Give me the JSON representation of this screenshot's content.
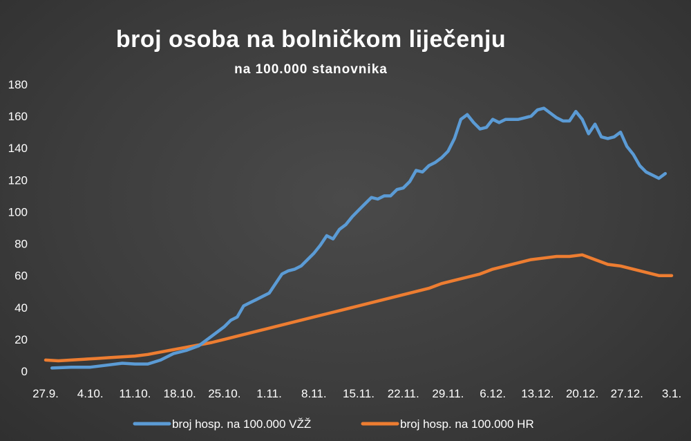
{
  "chart_data": {
    "type": "line",
    "title": "broj osoba na bolničkom liječenju",
    "subtitle": "na 100.000 stanovnika",
    "xlabel": "",
    "ylabel": "",
    "ylim": [
      0,
      180
    ],
    "y_ticks": [
      0,
      20,
      40,
      60,
      80,
      100,
      120,
      140,
      160,
      180
    ],
    "x_tick_labels": [
      "27.9.",
      "4.10.",
      "11.10.",
      "18.10.",
      "25.10.",
      "1.11.",
      "8.11.",
      "15.11.",
      "22.11.",
      "29.11.",
      "6.12.",
      "13.12.",
      "20.12.",
      "27.12.",
      "3.1."
    ],
    "x_tick_day_index": [
      0,
      7,
      14,
      21,
      28,
      35,
      42,
      49,
      56,
      63,
      70,
      77,
      84,
      91,
      98
    ],
    "n_days": 99,
    "grid": false,
    "legend_position": "bottom",
    "series": [
      {
        "name": "broj hosp. na 100.000 VŽŽ",
        "color": "#5b9bd5",
        "points": [
          [
            1,
            2
          ],
          [
            4,
            2.5
          ],
          [
            7,
            2.5
          ],
          [
            10,
            4
          ],
          [
            12,
            5
          ],
          [
            14,
            4.5
          ],
          [
            16,
            4.5
          ],
          [
            18,
            7
          ],
          [
            20,
            11
          ],
          [
            22,
            13
          ],
          [
            24,
            16
          ],
          [
            26,
            22
          ],
          [
            28,
            28
          ],
          [
            29,
            32
          ],
          [
            30,
            34
          ],
          [
            31,
            41
          ],
          [
            32,
            43
          ],
          [
            33,
            45
          ],
          [
            35,
            49
          ],
          [
            36,
            55
          ],
          [
            37,
            61
          ],
          [
            38,
            63
          ],
          [
            39,
            64
          ],
          [
            40,
            66
          ],
          [
            41,
            70
          ],
          [
            42,
            74
          ],
          [
            43,
            79
          ],
          [
            44,
            85
          ],
          [
            45,
            83
          ],
          [
            46,
            89
          ],
          [
            47,
            92
          ],
          [
            48,
            97
          ],
          [
            49,
            101
          ],
          [
            50,
            105
          ],
          [
            51,
            109
          ],
          [
            52,
            108
          ],
          [
            53,
            110
          ],
          [
            54,
            110
          ],
          [
            55,
            114
          ],
          [
            56,
            115
          ],
          [
            57,
            119
          ],
          [
            58,
            126
          ],
          [
            59,
            125
          ],
          [
            60,
            129
          ],
          [
            61,
            131
          ],
          [
            62,
            134
          ],
          [
            63,
            138
          ],
          [
            64,
            146
          ],
          [
            65,
            158
          ],
          [
            66,
            161
          ],
          [
            67,
            156
          ],
          [
            68,
            152
          ],
          [
            69,
            153
          ],
          [
            70,
            158
          ],
          [
            71,
            156
          ],
          [
            72,
            158
          ],
          [
            73,
            158
          ],
          [
            74,
            158
          ],
          [
            75,
            159
          ],
          [
            76,
            160
          ],
          [
            77,
            164
          ],
          [
            78,
            165
          ],
          [
            79,
            162
          ],
          [
            80,
            159
          ],
          [
            81,
            157
          ],
          [
            82,
            157
          ],
          [
            83,
            163
          ],
          [
            84,
            158
          ],
          [
            85,
            149
          ],
          [
            86,
            155
          ],
          [
            87,
            147
          ],
          [
            88,
            146
          ],
          [
            89,
            147
          ],
          [
            90,
            150
          ],
          [
            91,
            141
          ],
          [
            92,
            136
          ],
          [
            93,
            129
          ],
          [
            94,
            125
          ],
          [
            95,
            123
          ],
          [
            96,
            121
          ],
          [
            97,
            124
          ]
        ]
      },
      {
        "name": "broj hosp. na 100.000 HR",
        "color": "#ed7d31",
        "points": [
          [
            0,
            7
          ],
          [
            2,
            6.5
          ],
          [
            4,
            7
          ],
          [
            6,
            7.5
          ],
          [
            8,
            8
          ],
          [
            10,
            8.5
          ],
          [
            12,
            9
          ],
          [
            14,
            9.5
          ],
          [
            16,
            10.5
          ],
          [
            18,
            12
          ],
          [
            20,
            13.5
          ],
          [
            22,
            15
          ],
          [
            24,
            16.5
          ],
          [
            26,
            18
          ],
          [
            28,
            20
          ],
          [
            30,
            22
          ],
          [
            32,
            24
          ],
          [
            34,
            26
          ],
          [
            36,
            28
          ],
          [
            38,
            30
          ],
          [
            40,
            32
          ],
          [
            42,
            34
          ],
          [
            44,
            36
          ],
          [
            46,
            38
          ],
          [
            48,
            40
          ],
          [
            50,
            42
          ],
          [
            52,
            44
          ],
          [
            54,
            46
          ],
          [
            56,
            48
          ],
          [
            58,
            50
          ],
          [
            60,
            52
          ],
          [
            62,
            55
          ],
          [
            64,
            57
          ],
          [
            66,
            59
          ],
          [
            68,
            61
          ],
          [
            70,
            64
          ],
          [
            72,
            66
          ],
          [
            74,
            68
          ],
          [
            76,
            70
          ],
          [
            78,
            71
          ],
          [
            80,
            72
          ],
          [
            82,
            72
          ],
          [
            84,
            73
          ],
          [
            86,
            70
          ],
          [
            88,
            67
          ],
          [
            90,
            66
          ],
          [
            92,
            64
          ],
          [
            94,
            62
          ],
          [
            96,
            60
          ],
          [
            98,
            60
          ]
        ]
      }
    ]
  }
}
